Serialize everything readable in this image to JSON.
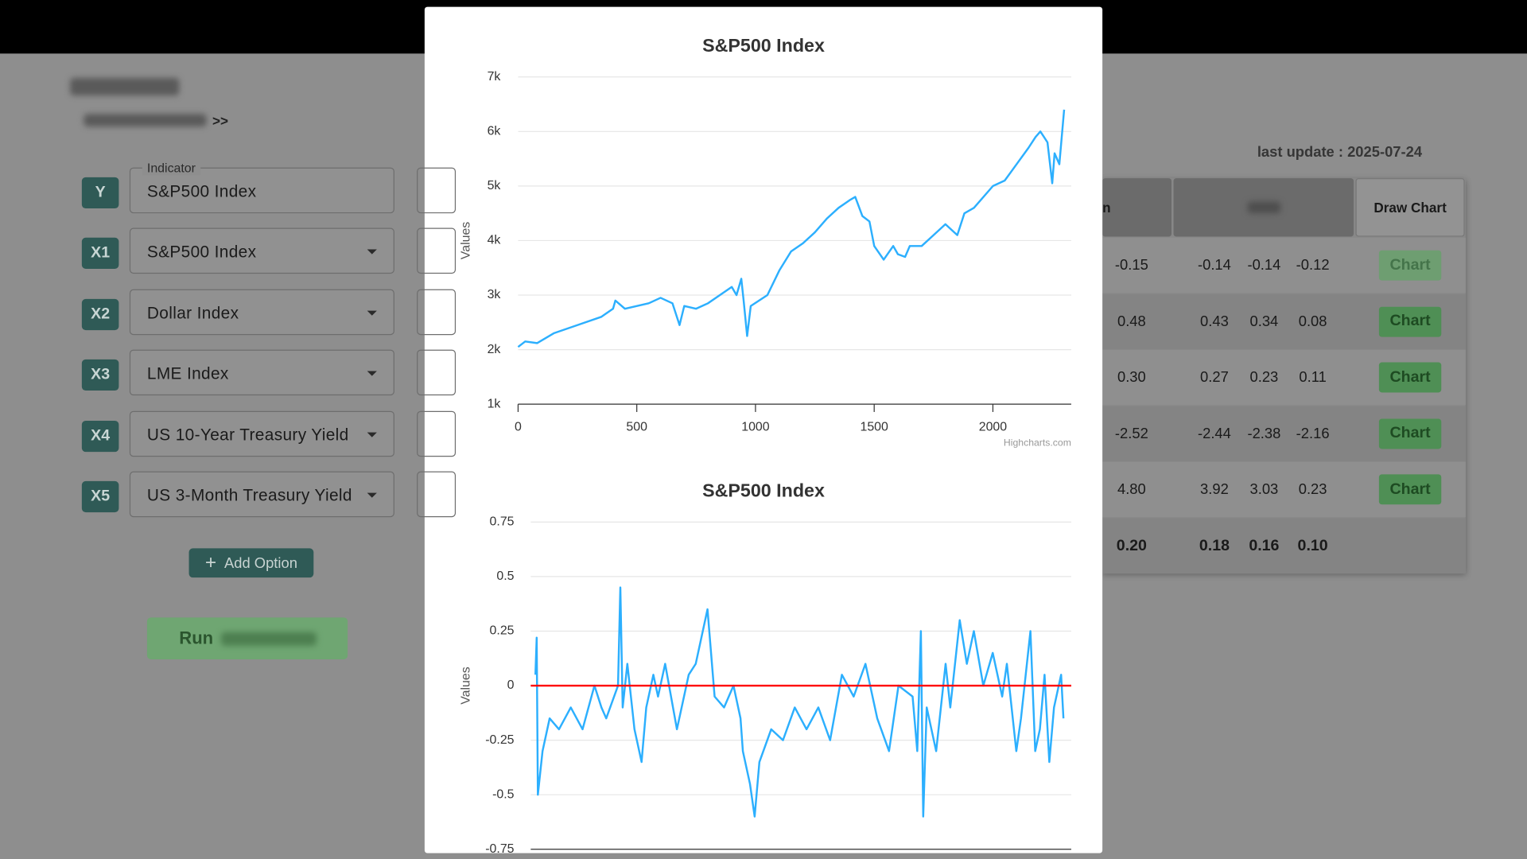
{
  "header": {
    "breadcrumb_arrow": ">>",
    "last_update": "last update : 2025-07-24"
  },
  "form": {
    "indicator_label": "Indicator",
    "rows": [
      {
        "badge": "Y",
        "value": "S&P500 Index"
      },
      {
        "badge": "X1",
        "value": "S&P500 Index"
      },
      {
        "badge": "X2",
        "value": "Dollar Index"
      },
      {
        "badge": "X3",
        "value": "LME Index"
      },
      {
        "badge": "X4",
        "value": "US 10-Year Treasury Yield"
      },
      {
        "badge": "X5",
        "value": "US 3-Month Treasury Yield"
      }
    ],
    "add_button": "Add Option",
    "run_button": "Run"
  },
  "table": {
    "header_partial": "n",
    "draw_chart_header": "Draw Chart",
    "rows": [
      [
        "-0.15",
        "-0.14",
        "-0.14",
        "-0.12",
        "Chart"
      ],
      [
        "0.48",
        "0.43",
        "0.34",
        "0.08",
        "Chart"
      ],
      [
        "0.30",
        "0.27",
        "0.23",
        "0.11",
        "Chart"
      ],
      [
        "-2.52",
        "-2.44",
        "-2.38",
        "-2.16",
        "Chart"
      ],
      [
        "4.80",
        "3.92",
        "3.03",
        "0.23",
        "Chart"
      ]
    ],
    "total_row": [
      "0.20",
      "0.18",
      "0.16",
      "0.10"
    ]
  },
  "chart_data": [
    {
      "type": "line",
      "title": "S&P500 Index",
      "y_label": "Values",
      "credit": "Highcharts.com",
      "color": "#2caffe",
      "grid": true,
      "xlim": [
        0,
        2330
      ],
      "xticks": [
        0,
        500,
        1000,
        1500,
        2000
      ],
      "ylim": [
        1000,
        7000
      ],
      "yticks": [
        {
          "value": 1000,
          "label": "1k"
        },
        {
          "value": 2000,
          "label": "2k"
        },
        {
          "value": 3000,
          "label": "3k"
        },
        {
          "value": 4000,
          "label": "4k"
        },
        {
          "value": 5000,
          "label": "5k"
        },
        {
          "value": 6000,
          "label": "6k"
        },
        {
          "value": 7000,
          "label": "7k"
        }
      ],
      "x": [
        0,
        30,
        80,
        150,
        250,
        350,
        400,
        410,
        450,
        550,
        600,
        650,
        680,
        700,
        750,
        800,
        900,
        920,
        940,
        950,
        965,
        980,
        1050,
        1100,
        1150,
        1200,
        1250,
        1300,
        1350,
        1400,
        1420,
        1450,
        1480,
        1500,
        1540,
        1580,
        1600,
        1630,
        1650,
        1700,
        1750,
        1800,
        1850,
        1880,
        1920,
        2000,
        2050,
        2100,
        2150,
        2180,
        2200,
        2215,
        2230,
        2250,
        2260,
        2280,
        2300
      ],
      "values": [
        2050,
        2150,
        2120,
        2300,
        2450,
        2600,
        2750,
        2900,
        2750,
        2850,
        2950,
        2850,
        2450,
        2800,
        2750,
        2850,
        3150,
        3000,
        3300,
        2900,
        2250,
        2800,
        3000,
        3450,
        3800,
        3950,
        4150,
        4400,
        4600,
        4750,
        4800,
        4450,
        4350,
        3900,
        3650,
        3900,
        3750,
        3700,
        3900,
        3900,
        4100,
        4300,
        4100,
        4500,
        4600,
        5000,
        5100,
        5400,
        5700,
        5900,
        6000,
        5900,
        5800,
        5050,
        5600,
        5400,
        6400
      ]
    },
    {
      "type": "line",
      "title": "S&P500 Index",
      "y_label": "Values",
      "color": "#2caffe",
      "grid": true,
      "plot_line": {
        "value": 0,
        "color": "#ff0000"
      },
      "xlim": [
        -20,
        2273
      ],
      "ylim": [
        -0.75,
        0.75
      ],
      "yticks": [
        -0.75,
        -0.5,
        -0.25,
        0,
        0.25,
        0.5,
        0.75
      ],
      "x": [
        0,
        5,
        10,
        30,
        60,
        100,
        150,
        200,
        250,
        280,
        300,
        350,
        360,
        370,
        390,
        420,
        450,
        470,
        500,
        520,
        550,
        600,
        650,
        680,
        730,
        760,
        800,
        840,
        870,
        880,
        910,
        930,
        950,
        1000,
        1050,
        1100,
        1150,
        1200,
        1250,
        1300,
        1350,
        1400,
        1450,
        1500,
        1540,
        1600,
        1620,
        1635,
        1645,
        1660,
        1700,
        1740,
        1760,
        1800,
        1830,
        1860,
        1900,
        1940,
        1980,
        2000,
        2040,
        2060,
        2100,
        2120,
        2140,
        2160,
        2180,
        2200,
        2230,
        2240
      ],
      "values": [
        0.05,
        0.22,
        -0.5,
        -0.3,
        -0.15,
        -0.2,
        -0.1,
        -0.2,
        0,
        -0.1,
        -0.15,
        0.0,
        0.45,
        -0.1,
        0.1,
        -0.2,
        -0.35,
        -0.1,
        0.05,
        -0.05,
        0.1,
        -0.2,
        0.05,
        0.1,
        0.35,
        -0.05,
        -0.1,
        0.0,
        -0.15,
        -0.3,
        -0.45,
        -0.6,
        -0.35,
        -0.2,
        -0.25,
        -0.1,
        -0.2,
        -0.1,
        -0.25,
        0.05,
        -0.05,
        0.1,
        -0.15,
        -0.3,
        0.0,
        -0.05,
        -0.3,
        0.25,
        -0.6,
        -0.1,
        -0.3,
        0.1,
        -0.1,
        0.3,
        0.1,
        0.25,
        0.0,
        0.15,
        -0.05,
        0.1,
        -0.3,
        -0.15,
        0.25,
        -0.3,
        -0.2,
        0.05,
        -0.35,
        -0.1,
        0.05,
        -0.15
      ]
    }
  ]
}
